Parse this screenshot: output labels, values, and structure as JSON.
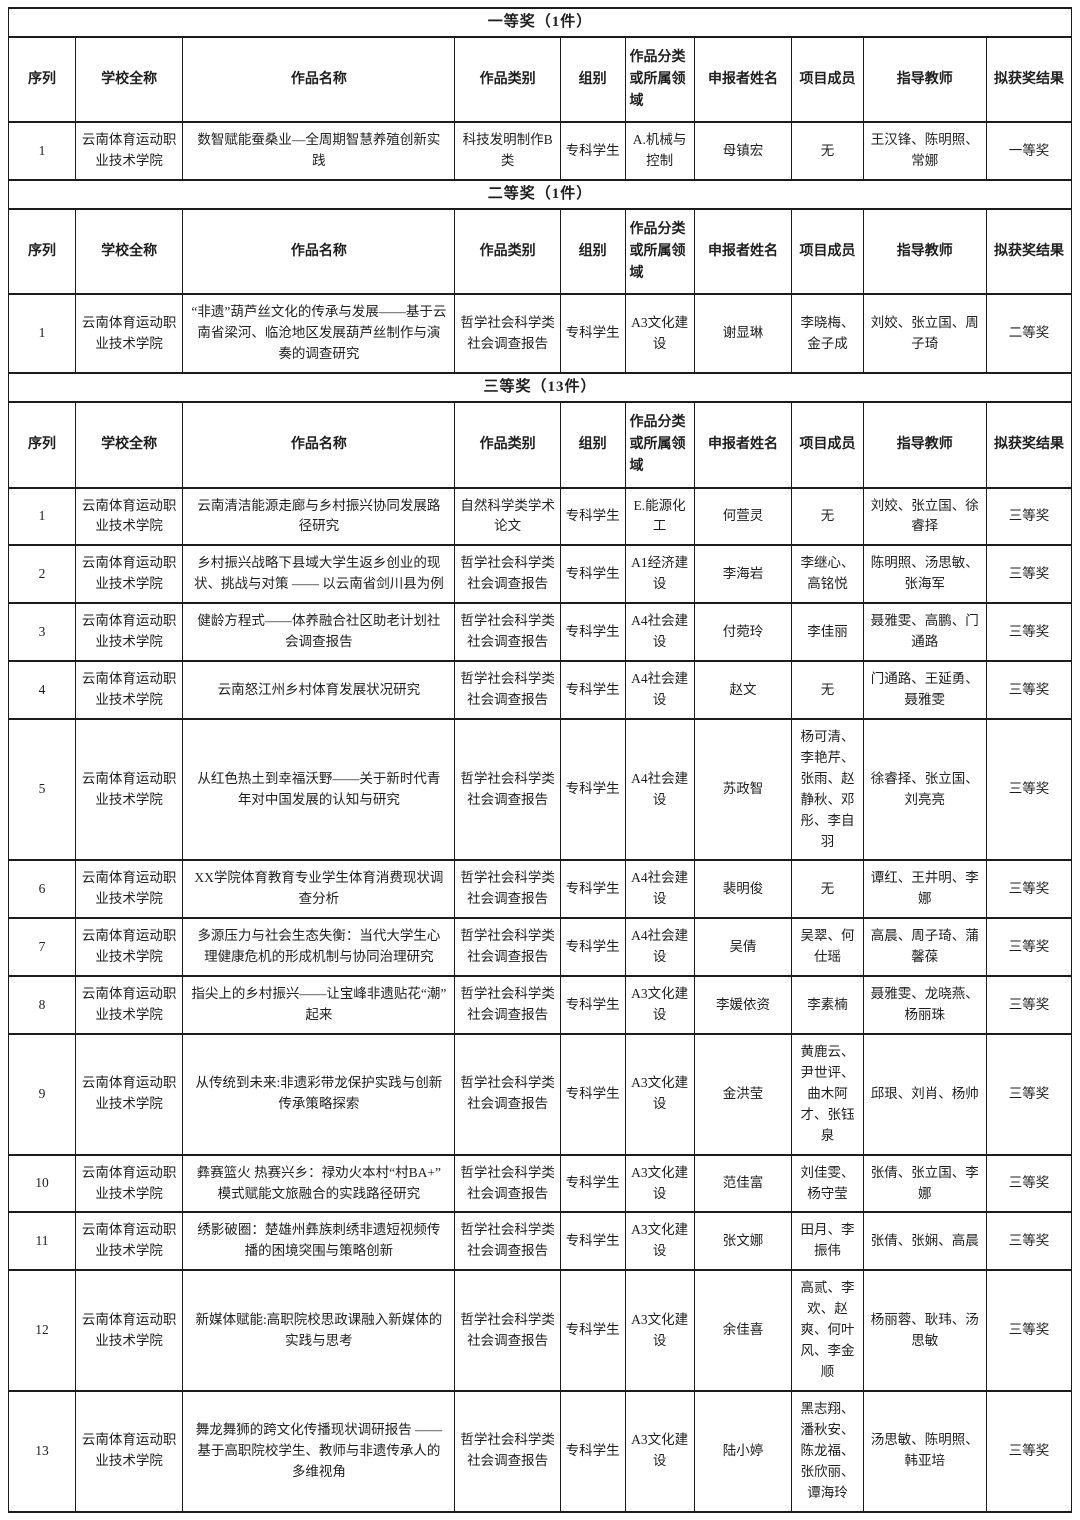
{
  "columns": [
    {
      "key": "seq",
      "label": "序列",
      "width": "6.3%"
    },
    {
      "key": "school",
      "label": "学校全称",
      "width": "10.1%"
    },
    {
      "key": "title",
      "label": "作品名称",
      "width": "25.6%"
    },
    {
      "key": "category",
      "label": "作品类别",
      "width": "9.9%"
    },
    {
      "key": "group",
      "label": "组别",
      "width": "6.1%"
    },
    {
      "key": "field",
      "label": "作品分类或所属领域",
      "width": "6.5%"
    },
    {
      "key": "applicant",
      "label": "申报者姓名",
      "width": "9.2%"
    },
    {
      "key": "members",
      "label": "项目成员",
      "width": "6.7%"
    },
    {
      "key": "advisors",
      "label": "指导教师",
      "width": "11.6%"
    },
    {
      "key": "result",
      "label": "拟获奖结果",
      "width": "8.0%"
    }
  ],
  "sections": [
    {
      "title": "一等奖（1件）",
      "rows": [
        {
          "seq": "1",
          "school": "云南体育运动职业技术学院",
          "title": "数智赋能蚕桑业—全周期智慧养殖创新实践",
          "category": "科技发明制作B类",
          "group": "专科学生",
          "field": "A.机械与控制",
          "applicant": "母镇宏",
          "members": "无",
          "advisors": "王汉锋、陈明照、常娜",
          "result": "一等奖"
        }
      ]
    },
    {
      "title": "二等奖（1件）",
      "rows": [
        {
          "seq": "1",
          "school": "云南体育运动职业技术学院",
          "title": "“非遗”葫芦丝文化的传承与发展——基于云南省梁河、临沧地区发展葫芦丝制作与演奏的调查研究",
          "category": "哲学社会科学类社会调查报告",
          "group": "专科学生",
          "field": "A3文化建设",
          "applicant": "谢显琳",
          "members": "李晓梅、金子成",
          "advisors": "刘姣、张立国、周子琦",
          "result": "二等奖"
        }
      ]
    },
    {
      "title": "三等奖（13件）",
      "rows": [
        {
          "seq": "1",
          "school": "云南体育运动职业技术学院",
          "title": "云南清洁能源走廊与乡村振兴协同发展路径研究",
          "category": "自然科学类学术论文",
          "group": "专科学生",
          "field": "E.能源化工",
          "applicant": "何萱灵",
          "members": "无",
          "advisors": "刘姣、张立国、徐睿择",
          "result": "三等奖"
        },
        {
          "seq": "2",
          "school": "云南体育运动职业技术学院",
          "title": "乡村振兴战略下县域大学生返乡创业的现状、挑战与对策 —— 以云南省剑川县为例",
          "category": "哲学社会科学类社会调查报告",
          "group": "专科学生",
          "field": "A1经济建设",
          "applicant": "李海岩",
          "members": "李继心、高铭悦",
          "advisors": "陈明照、汤思敏、张海军",
          "result": "三等奖"
        },
        {
          "seq": "3",
          "school": "云南体育运动职业技术学院",
          "title": "健龄方程式——体养融合社区助老计划社会调查报告",
          "category": "哲学社会科学类社会调查报告",
          "group": "专科学生",
          "field": "A4社会建设",
          "applicant": "付菀玲",
          "members": "李佳丽",
          "advisors": "聂雅雯、高鹏、门通路",
          "result": "三等奖"
        },
        {
          "seq": "4",
          "school": "云南体育运动职业技术学院",
          "title": "云南怒江州乡村体育发展状况研究",
          "category": "哲学社会科学类社会调查报告",
          "group": "专科学生",
          "field": "A4社会建设",
          "applicant": "赵文",
          "members": "无",
          "advisors": "门通路、王延勇、聂雅雯",
          "result": "三等奖"
        },
        {
          "seq": "5",
          "school": "云南体育运动职业技术学院",
          "title": "从红色热土到幸福沃野——关于新时代青年对中国发展的认知与研究",
          "category": "哲学社会科学类社会调查报告",
          "group": "专科学生",
          "field": "A4社会建设",
          "applicant": "苏政智",
          "members": "杨可清、李艳芹、张雨、赵静秋、邓彤、李自羽",
          "advisors": "徐睿择、张立国、刘亮亮",
          "result": "三等奖"
        },
        {
          "seq": "6",
          "school": "云南体育运动职业技术学院",
          "title": "XX学院体育教育专业学生体育消费现状调查分析",
          "category": "哲学社会科学类社会调查报告",
          "group": "专科学生",
          "field": "A4社会建设",
          "applicant": "裴明俊",
          "members": "无",
          "advisors": "谭红、王井明、李娜",
          "result": "三等奖"
        },
        {
          "seq": "7",
          "school": "云南体育运动职业技术学院",
          "title": "多源压力与社会生态失衡：当代大学生心理健康危机的形成机制与协同治理研究",
          "category": "哲学社会科学类社会调查报告",
          "group": "专科学生",
          "field": "A4社会建设",
          "applicant": "吴倩",
          "members": "吴翠、何仕瑶",
          "advisors": "高晨、周子琦、蒲馨葆",
          "result": "三等奖"
        },
        {
          "seq": "8",
          "school": "云南体育运动职业技术学院",
          "title": "指尖上的乡村振兴——让宝峰非遗贴花“潮”起来",
          "category": "哲学社会科学类社会调查报告",
          "group": "专科学生",
          "field": "A3文化建设",
          "applicant": "李媛依资",
          "members": "李素楠",
          "advisors": "聂雅雯、龙晓燕、杨丽珠",
          "result": "三等奖"
        },
        {
          "seq": "9",
          "school": "云南体育运动职业技术学院",
          "title": "从传统到未来:非遗彩带龙保护实践与创新传承策略探索",
          "category": "哲学社会科学类社会调查报告",
          "group": "专科学生",
          "field": "A3文化建设",
          "applicant": "金洪莹",
          "members": "黄鹿云、尹世评、曲木阿才、张钰泉",
          "advisors": "邱珢、刘肖、杨帅",
          "result": "三等奖"
        },
        {
          "seq": "10",
          "school": "云南体育运动职业技术学院",
          "title": "彝赛篮火 热赛兴乡：禄劝火本村“村BA+”模式赋能文旅融合的实践路径研究",
          "category": "哲学社会科学类社会调查报告",
          "group": "专科学生",
          "field": "A3文化建设",
          "applicant": "范佳富",
          "members": "刘佳雯、杨守莹",
          "advisors": "张倩、张立国、李娜",
          "result": "三等奖"
        },
        {
          "seq": "11",
          "school": "云南体育运动职业技术学院",
          "title": "绣影破圈：楚雄州彝族刺绣非遗短视频传播的困境突围与策略创新",
          "category": "哲学社会科学类社会调查报告",
          "group": "专科学生",
          "field": "A3文化建设",
          "applicant": "张文娜",
          "members": "田月、李振伟",
          "advisors": "张倩、张娴、高晨",
          "result": "三等奖"
        },
        {
          "seq": "12",
          "school": "云南体育运动职业技术学院",
          "title": "新媒体赋能:高职院校思政课融入新媒体的实践与思考",
          "category": "哲学社会科学类社会调查报告",
          "group": "专科学生",
          "field": "A3文化建设",
          "applicant": "余佳喜",
          "members": "高贰、李欢、赵爽、何叶风、李金顺",
          "advisors": "杨丽蓉、耿玮、汤思敏",
          "result": "三等奖"
        },
        {
          "seq": "13",
          "school": "云南体育运动职业技术学院",
          "title": "舞龙舞狮的跨文化传播现状调研报告 —— 基于高职院校学生、教师与非遗传承人的多维视角",
          "category": "哲学社会科学类社会调查报告",
          "group": "专科学生",
          "field": "A3文化建设",
          "applicant": "陆小婷",
          "members": "黑志翔、潘秋安、陈龙福、张欣丽、谭海玲",
          "advisors": "汤思敏、陈明照、韩亚培",
          "result": "三等奖"
        }
      ]
    }
  ]
}
